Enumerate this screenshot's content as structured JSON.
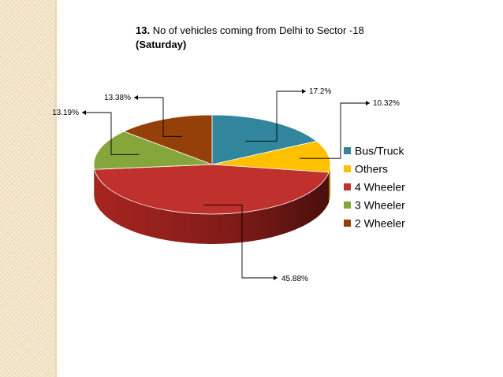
{
  "title": {
    "number": "13.",
    "text": "No of vehicles coming from Delhi to Sector -18",
    "subtitle": "(Saturday)"
  },
  "chart_data": {
    "type": "pie",
    "style": "3d",
    "legend_position": "right",
    "categories": [
      "Bus/Truck",
      "Others",
      "4 Wheeler",
      "3 Wheeler",
      "2 Wheeler"
    ],
    "values": [
      17.2,
      10.32,
      45.88,
      13.19,
      13.38
    ],
    "labels": [
      "17.2%",
      "10.32%",
      "45.88%",
      "13.19%",
      "13.38%"
    ],
    "colors": [
      "#31859c",
      "#ffc000",
      "#c0302c",
      "#84a63a",
      "#964009"
    ]
  }
}
